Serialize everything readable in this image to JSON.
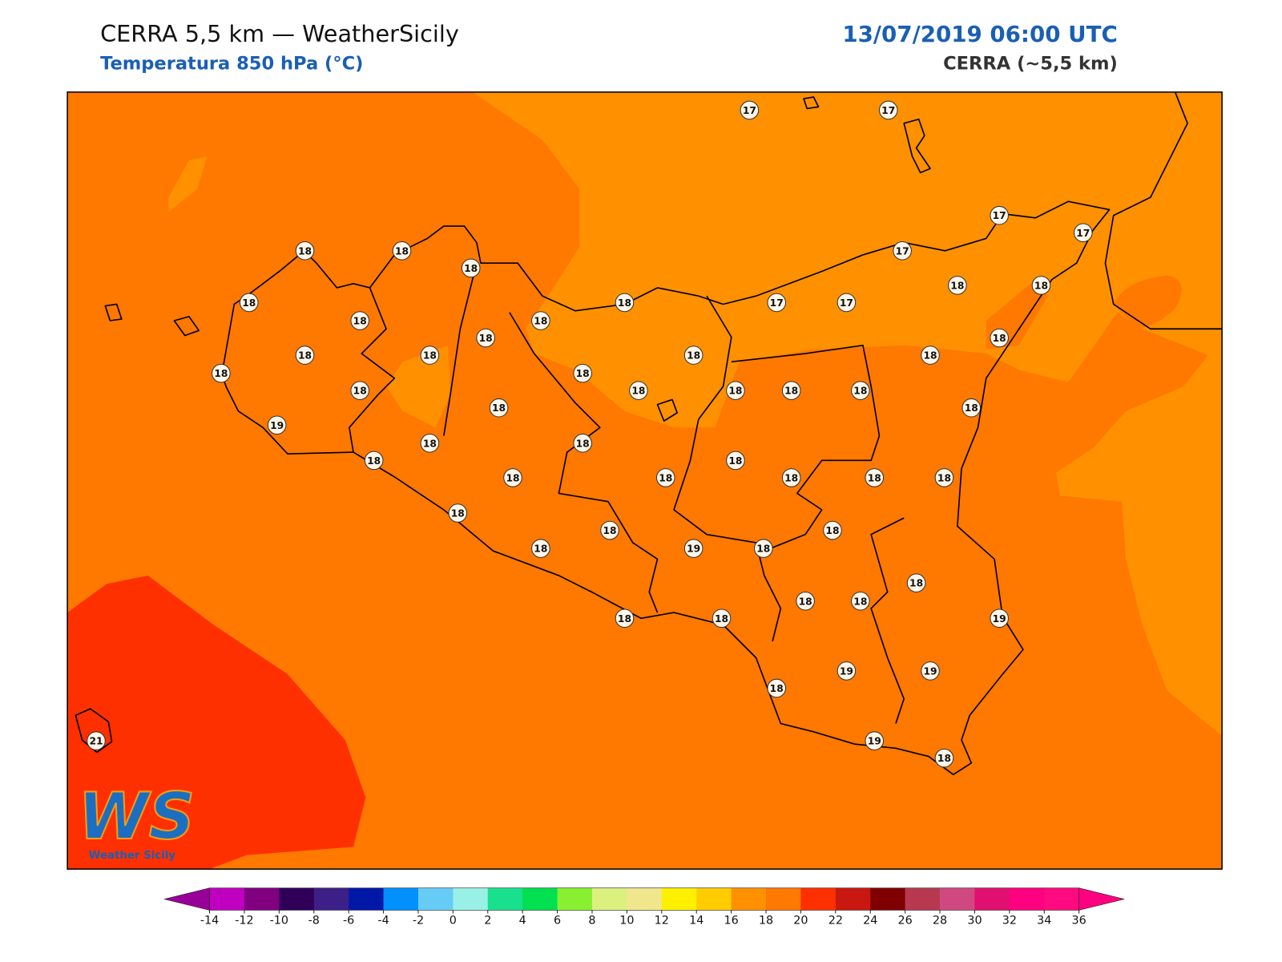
{
  "header": {
    "title": "CERRA 5,5 km — WeatherSicily",
    "subtitle": "Temperatura 850 hPa (°C)",
    "datetime": "13/07/2019 06:00 UTC",
    "model": "CERRA (~5,5 km)"
  },
  "logo": {
    "text": "WS",
    "caption": "Weather Sicily"
  },
  "stations": [
    17,
    17,
    17,
    17,
    18,
    18,
    18,
    17,
    18,
    18,
    18,
    18,
    18,
    17,
    17,
    18,
    18,
    18,
    18,
    18,
    18,
    18,
    18,
    18,
    18,
    18,
    18,
    18,
    18,
    18,
    18,
    19,
    18,
    18,
    18,
    18,
    18,
    18,
    18,
    18,
    18,
    18,
    18,
    18,
    18,
    19,
    18,
    18,
    18,
    18,
    18,
    18,
    19,
    19,
    19,
    18,
    19,
    18,
    21
  ],
  "colorbar": {
    "ticks": [
      -14,
      -12,
      -10,
      -8,
      -6,
      -4,
      -2,
      0,
      2,
      4,
      6,
      8,
      10,
      12,
      14,
      16,
      18,
      20,
      22,
      24,
      26,
      28,
      30,
      32,
      34,
      36
    ],
    "colors": [
      "#c000c0",
      "#800080",
      "#300058",
      "#3c2088",
      "#0018a8",
      "#0090ff",
      "#66ccf5",
      "#99f0e6",
      "#18e08c",
      "#00e050",
      "#88f030",
      "#dcf080",
      "#f0e68c",
      "#fff000",
      "#ffcc00",
      "#ff9000",
      "#ff7800",
      "#ff3000",
      "#c81810",
      "#800000",
      "#b83850",
      "#d04880",
      "#e01070",
      "#ff0080",
      "#ff0a80"
    ],
    "under_color": "#990099",
    "over_color": "#ff0080"
  }
}
